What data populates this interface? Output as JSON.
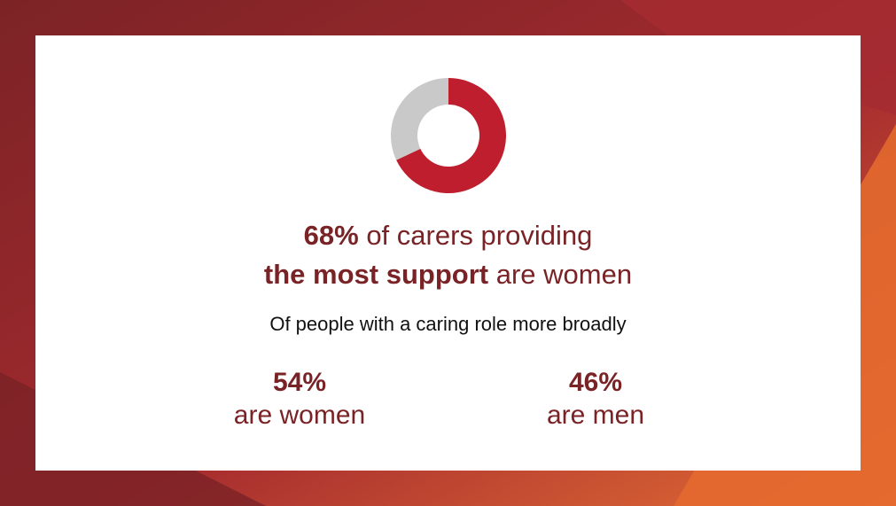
{
  "colors": {
    "accent": "#be1e2d",
    "neutral": "#c9c9c9",
    "text_accent": "#7a2326",
    "frame_dark": "#7c2326",
    "frame_orange": "#e56f35"
  },
  "headline": {
    "line1_bold": "68%",
    "line1_rest": " of carers providing",
    "line2_bold": "the most support",
    "line2_rest": " are women"
  },
  "subtitle": "Of people with a caring role more broadly",
  "stats": [
    {
      "value": "54%",
      "label": "are women"
    },
    {
      "value": "46%",
      "label": "are men"
    }
  ],
  "chart_data": {
    "type": "pie",
    "donut": true,
    "slices": [
      {
        "value": 68,
        "color": "#be1e2d"
      },
      {
        "value": 32,
        "color": "#c9c9c9"
      }
    ]
  }
}
